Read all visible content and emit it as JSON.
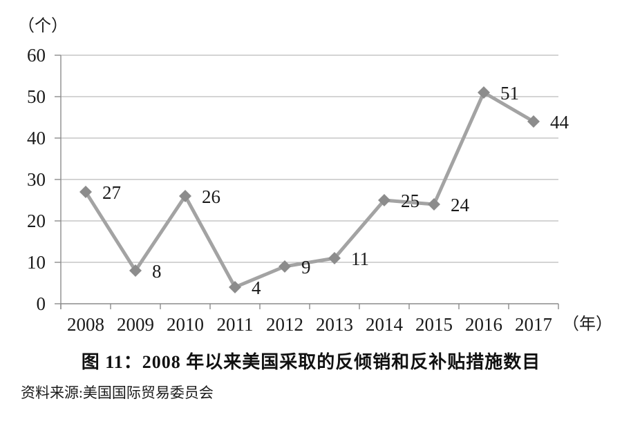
{
  "chart_data": {
    "type": "line",
    "title": "图 11：2008 年以来美国采取的反倾销和反补贴措施数目",
    "source": "资料来源:美国国际贸易委员会",
    "categories": [
      "2008",
      "2009",
      "2010",
      "2011",
      "2012",
      "2013",
      "2014",
      "2015",
      "2016",
      "2017"
    ],
    "values": [
      27,
      8,
      26,
      4,
      9,
      11,
      25,
      24,
      51,
      44
    ],
    "ylabel": "（个）",
    "xlabel": "（年）",
    "ylim": [
      0,
      60
    ],
    "yticks": [
      0,
      10,
      20,
      30,
      40,
      50,
      60
    ],
    "grid": true,
    "legend": "none",
    "data_labels": true,
    "marker": "diamond",
    "colors": {
      "line": "#a3a3a3",
      "marker": "#8c8c8c",
      "grid": "#a8a8a8",
      "axis": "#8c8c8c",
      "text": "#1a1a1a"
    }
  }
}
